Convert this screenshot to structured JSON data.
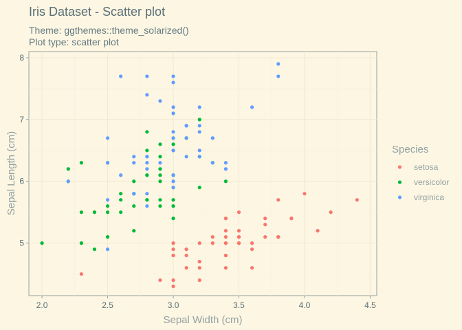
{
  "chart_data": {
    "type": "scatter",
    "title": "Iris Dataset - Scatter plot",
    "subtitle_lines": [
      "Theme: ggthemes::theme_solarized()",
      "Plot type: scatter plot"
    ],
    "xlabel": "Sepal Width (cm)",
    "ylabel": "Sepal Length (cm)",
    "xlim": [
      1.9,
      4.55
    ],
    "ylim": [
      4.15,
      8.1
    ],
    "xticks": [
      2.0,
      2.5,
      3.0,
      3.5,
      4.0,
      4.5
    ],
    "xtick_labels": [
      "2.0",
      "2.5",
      "3.0",
      "3.5",
      "4.0",
      "4.5"
    ],
    "yticks": [
      5,
      6,
      7,
      8
    ],
    "ytick_labels": [
      "5",
      "6",
      "7",
      "8"
    ],
    "grid": true,
    "legend": {
      "title": "Species",
      "position": "right"
    },
    "series": [
      {
        "name": "setosa",
        "color": "#f8766d",
        "points": [
          [
            3.5,
            5.1
          ],
          [
            3.0,
            4.9
          ],
          [
            3.2,
            4.7
          ],
          [
            3.1,
            4.6
          ],
          [
            3.6,
            5.0
          ],
          [
            3.9,
            5.4
          ],
          [
            3.4,
            4.6
          ],
          [
            3.4,
            5.0
          ],
          [
            2.9,
            4.4
          ],
          [
            3.1,
            4.9
          ],
          [
            3.7,
            5.4
          ],
          [
            3.4,
            4.8
          ],
          [
            3.0,
            4.8
          ],
          [
            3.0,
            4.3
          ],
          [
            4.0,
            5.8
          ],
          [
            4.4,
            5.7
          ],
          [
            3.9,
            5.4
          ],
          [
            3.5,
            5.1
          ],
          [
            3.8,
            5.7
          ],
          [
            3.8,
            5.1
          ],
          [
            3.4,
            5.4
          ],
          [
            3.7,
            5.1
          ],
          [
            3.6,
            4.6
          ],
          [
            3.3,
            5.1
          ],
          [
            3.4,
            4.8
          ],
          [
            3.0,
            5.0
          ],
          [
            3.4,
            5.0
          ],
          [
            3.5,
            5.2
          ],
          [
            3.4,
            5.2
          ],
          [
            3.2,
            4.7
          ],
          [
            3.1,
            4.8
          ],
          [
            3.4,
            5.4
          ],
          [
            4.1,
            5.2
          ],
          [
            4.2,
            5.5
          ],
          [
            3.1,
            4.9
          ],
          [
            3.2,
            5.0
          ],
          [
            3.5,
            5.5
          ],
          [
            3.6,
            4.9
          ],
          [
            3.0,
            4.4
          ],
          [
            3.4,
            5.1
          ],
          [
            3.5,
            5.0
          ],
          [
            2.3,
            4.5
          ],
          [
            3.2,
            4.4
          ],
          [
            3.5,
            5.0
          ],
          [
            3.8,
            5.1
          ],
          [
            3.0,
            4.8
          ],
          [
            3.8,
            5.1
          ],
          [
            3.2,
            4.6
          ],
          [
            3.7,
            5.3
          ],
          [
            3.3,
            5.0
          ]
        ]
      },
      {
        "name": "versicolor",
        "color": "#00ba38",
        "points": [
          [
            3.2,
            7.0
          ],
          [
            3.2,
            6.4
          ],
          [
            3.1,
            6.9
          ],
          [
            2.3,
            5.5
          ],
          [
            2.8,
            6.5
          ],
          [
            2.8,
            5.7
          ],
          [
            3.3,
            6.3
          ],
          [
            2.4,
            4.9
          ],
          [
            2.9,
            6.6
          ],
          [
            2.7,
            5.2
          ],
          [
            2.0,
            5.0
          ],
          [
            3.0,
            5.9
          ],
          [
            2.2,
            6.0
          ],
          [
            2.9,
            6.1
          ],
          [
            2.9,
            5.6
          ],
          [
            3.1,
            6.7
          ],
          [
            3.0,
            5.6
          ],
          [
            2.7,
            5.8
          ],
          [
            2.2,
            6.2
          ],
          [
            2.5,
            5.6
          ],
          [
            3.2,
            5.9
          ],
          [
            2.8,
            6.1
          ],
          [
            2.5,
            6.3
          ],
          [
            2.8,
            6.1
          ],
          [
            2.9,
            6.4
          ],
          [
            3.0,
            6.6
          ],
          [
            2.8,
            6.8
          ],
          [
            3.0,
            6.7
          ],
          [
            2.9,
            6.0
          ],
          [
            2.6,
            5.7
          ],
          [
            2.4,
            5.5
          ],
          [
            2.4,
            5.5
          ],
          [
            2.7,
            5.8
          ],
          [
            2.7,
            6.0
          ],
          [
            3.0,
            5.4
          ],
          [
            3.4,
            6.0
          ],
          [
            3.1,
            6.7
          ],
          [
            2.3,
            6.3
          ],
          [
            3.0,
            5.6
          ],
          [
            2.5,
            5.5
          ],
          [
            2.6,
            5.5
          ],
          [
            3.0,
            6.1
          ],
          [
            2.6,
            5.8
          ],
          [
            2.3,
            5.0
          ],
          [
            2.7,
            5.6
          ],
          [
            3.0,
            5.7
          ],
          [
            2.9,
            5.7
          ],
          [
            2.9,
            6.2
          ],
          [
            2.5,
            5.1
          ],
          [
            2.8,
            5.7
          ]
        ]
      },
      {
        "name": "virginica",
        "color": "#619cff",
        "points": [
          [
            3.3,
            6.3
          ],
          [
            2.7,
            5.8
          ],
          [
            3.0,
            7.1
          ],
          [
            2.9,
            6.3
          ],
          [
            3.0,
            6.5
          ],
          [
            3.0,
            7.6
          ],
          [
            2.5,
            4.9
          ],
          [
            2.9,
            7.3
          ],
          [
            2.5,
            6.7
          ],
          [
            3.6,
            7.2
          ],
          [
            3.2,
            6.5
          ],
          [
            2.7,
            6.4
          ],
          [
            3.0,
            6.8
          ],
          [
            2.5,
            5.7
          ],
          [
            2.8,
            5.8
          ],
          [
            3.2,
            6.4
          ],
          [
            3.0,
            6.5
          ],
          [
            3.8,
            7.7
          ],
          [
            2.6,
            7.7
          ],
          [
            2.2,
            6.0
          ],
          [
            3.2,
            6.9
          ],
          [
            2.8,
            5.6
          ],
          [
            2.8,
            7.7
          ],
          [
            2.7,
            6.3
          ],
          [
            3.3,
            6.7
          ],
          [
            3.2,
            7.2
          ],
          [
            2.8,
            6.2
          ],
          [
            3.0,
            6.1
          ],
          [
            2.8,
            6.4
          ],
          [
            3.0,
            7.2
          ],
          [
            2.8,
            7.4
          ],
          [
            3.8,
            7.9
          ],
          [
            2.8,
            6.4
          ],
          [
            2.8,
            6.3
          ],
          [
            2.6,
            6.1
          ],
          [
            3.0,
            7.7
          ],
          [
            3.4,
            6.3
          ],
          [
            3.1,
            6.4
          ],
          [
            3.0,
            6.0
          ],
          [
            3.1,
            6.9
          ],
          [
            3.1,
            6.7
          ],
          [
            3.1,
            6.9
          ],
          [
            2.7,
            5.8
          ],
          [
            3.2,
            6.8
          ],
          [
            3.3,
            6.7
          ],
          [
            3.0,
            6.7
          ],
          [
            2.5,
            6.3
          ],
          [
            3.0,
            6.5
          ],
          [
            3.4,
            6.2
          ],
          [
            3.0,
            5.9
          ]
        ]
      }
    ]
  }
}
